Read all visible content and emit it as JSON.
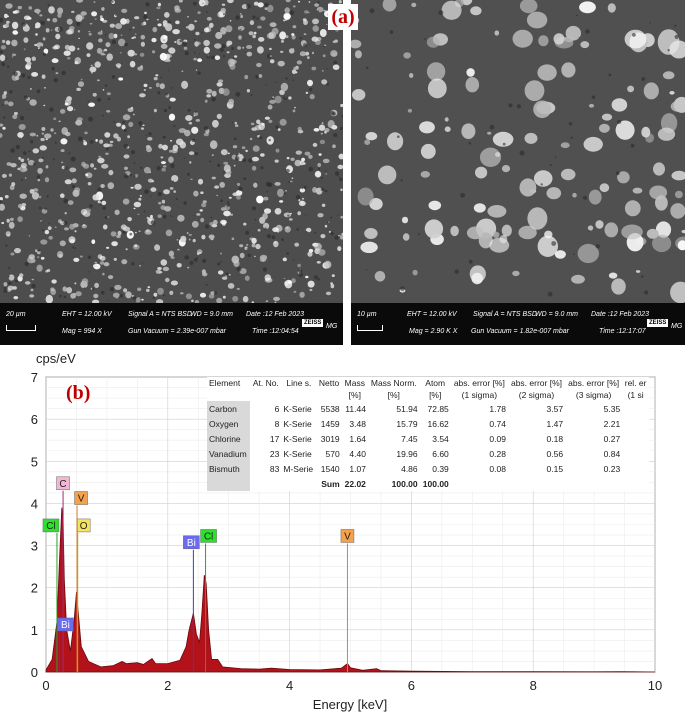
{
  "panel_a": {
    "label": "(a)",
    "left_image": {
      "scale": "20 µm",
      "eht": "EHT = 12.00 kV",
      "mag": "Mag = 994 X",
      "signal": "Signal A = NTS BSD",
      "wd": "WD = 9.0 mm",
      "vacuum": "Gun Vacuum = 2.39e-007 mbar",
      "date": "Date :12 Feb 2023",
      "time": "Time :12:04:54",
      "logo": "ZEISS",
      "initials": "MG"
    },
    "right_image": {
      "scale": "10 µm",
      "eht": "EHT = 12.00 kV",
      "mag": "Mag = 2.90 K X",
      "signal": "Signal A = NTS BSD",
      "wd": "WD = 9.0 mm",
      "vacuum": "Gun Vacuum = 1.82e-007 mbar",
      "date": "Date :12 Feb 2023",
      "time": "Time :12:17:07",
      "logo": "ZEISS",
      "initials": "MG"
    }
  },
  "panel_b": {
    "label": "(b)",
    "table": {
      "headers": [
        "Element",
        "At. No.",
        "Line s.",
        "Netto",
        "Mass [%]",
        "Mass Norm. [%]",
        "Atom [%]",
        "abs. error [%] (1 sigma)",
        "abs. error [%] (2 sigma)",
        "abs. error [%] (3 sigma)",
        "rel. er (1 si"
      ],
      "header_top": [
        "Element",
        "At. No.",
        "Line s.",
        "Netto",
        "Mass",
        "Mass Norm.",
        "Atom",
        "abs. error [%]",
        "abs. error [%]",
        "abs. error [%]",
        "rel. er"
      ],
      "header_bottom": [
        "",
        "",
        "",
        "",
        "[%]",
        "[%]",
        "[%]",
        "(1 sigma)",
        "(2 sigma)",
        "(3 sigma)",
        "(1 si"
      ],
      "rows": [
        [
          "Carbon",
          "6",
          "K-Serie",
          "5538",
          "11.44",
          "51.94",
          "72.85",
          "1.78",
          "3.57",
          "5.35",
          ""
        ],
        [
          "Oxygen",
          "8",
          "K-Serie",
          "1459",
          "3.48",
          "15.79",
          "16.62",
          "0.74",
          "1.47",
          "2.21",
          ""
        ],
        [
          "Chlorine",
          "17",
          "K-Serie",
          "3019",
          "1.64",
          "7.45",
          "3.54",
          "0.09",
          "0.18",
          "0.27",
          ""
        ],
        [
          "Vanadium",
          "23",
          "K-Serie",
          "570",
          "4.40",
          "19.96",
          "6.60",
          "0.28",
          "0.56",
          "0.84",
          ""
        ],
        [
          "Bismuth",
          "83",
          "M-Serie",
          "1540",
          "1.07",
          "4.86",
          "0.39",
          "0.08",
          "0.15",
          "0.23",
          ""
        ]
      ],
      "sum_label": "Sum",
      "sum_mass": "22.02",
      "sum_norm": "100.00",
      "sum_atom": "100.00"
    }
  },
  "chart_data": {
    "type": "area",
    "title": "",
    "xlabel": "Energy [keV]",
    "ylabel": "cps/eV",
    "xlim": [
      0,
      10
    ],
    "ylim": [
      0,
      7
    ],
    "x_ticks": [
      0,
      2,
      4,
      6,
      8,
      10
    ],
    "y_ticks": [
      0,
      1,
      2,
      3,
      4,
      5,
      6,
      7
    ],
    "grid": true,
    "spectrum": [
      [
        0.0,
        0.05
      ],
      [
        0.1,
        0.3
      ],
      [
        0.18,
        1.2
      ],
      [
        0.22,
        2.6
      ],
      [
        0.26,
        3.9
      ],
      [
        0.28,
        3.6
      ],
      [
        0.3,
        2.2
      ],
      [
        0.34,
        1.0
      ],
      [
        0.4,
        0.5
      ],
      [
        0.46,
        1.2
      ],
      [
        0.5,
        1.9
      ],
      [
        0.53,
        1.4
      ],
      [
        0.58,
        0.6
      ],
      [
        0.7,
        0.25
      ],
      [
        0.9,
        0.12
      ],
      [
        1.1,
        0.15
      ],
      [
        1.25,
        0.25
      ],
      [
        1.32,
        0.2
      ],
      [
        1.5,
        0.22
      ],
      [
        1.6,
        0.18
      ],
      [
        1.74,
        0.32
      ],
      [
        1.8,
        0.2
      ],
      [
        2.0,
        0.2
      ],
      [
        2.2,
        0.28
      ],
      [
        2.3,
        0.6
      ],
      [
        2.35,
        1.0
      ],
      [
        2.42,
        1.4
      ],
      [
        2.47,
        0.9
      ],
      [
        2.52,
        0.7
      ],
      [
        2.56,
        1.4
      ],
      [
        2.6,
        2.3
      ],
      [
        2.63,
        2.1
      ],
      [
        2.67,
        1.0
      ],
      [
        2.72,
        0.3
      ],
      [
        2.82,
        0.3
      ],
      [
        2.9,
        0.12
      ],
      [
        3.2,
        0.08
      ],
      [
        3.5,
        0.07
      ],
      [
        3.7,
        0.09
      ],
      [
        4.0,
        0.06
      ],
      [
        4.5,
        0.05
      ],
      [
        4.85,
        0.09
      ],
      [
        4.95,
        0.2
      ],
      [
        5.0,
        0.1
      ],
      [
        5.2,
        0.04
      ],
      [
        5.43,
        0.08
      ],
      [
        5.5,
        0.03
      ],
      [
        6.0,
        0.02
      ],
      [
        7.0,
        0.01
      ],
      [
        8.0,
        0.01
      ],
      [
        9.0,
        0.005
      ],
      [
        9.45,
        0.01
      ],
      [
        10.0,
        0.0
      ]
    ],
    "element_lines": [
      {
        "label": "C",
        "energy": 0.28,
        "height": 4.3,
        "color": "#9b2d6e"
      },
      {
        "label": "V",
        "energy": 0.51,
        "height": 3.95,
        "color": "#d9822b"
      },
      {
        "label": "Cl",
        "energy": 0.18,
        "height": 3.3,
        "color": "#2ca02c"
      },
      {
        "label": "O",
        "energy": 0.52,
        "height": 3.3,
        "color": "#b5a800"
      },
      {
        "label": "Bi",
        "energy": 0.22,
        "height": 0.95,
        "color": "#3d3dbd"
      },
      {
        "label": "Bi",
        "energy": 2.42,
        "height": 2.9,
        "color": "#3d3dbd"
      },
      {
        "label": "Cl",
        "energy": 2.62,
        "height": 3.05,
        "color": "#2ca02c"
      },
      {
        "label": "V",
        "energy": 4.95,
        "height": 3.05,
        "color": "#d9822b"
      }
    ],
    "label_colors": {
      "C": "#f4b6d6",
      "V": "#f5a04a",
      "Cl": "#2ee02e",
      "O": "#f5e45a",
      "Bi": "#6b6bf0"
    }
  }
}
